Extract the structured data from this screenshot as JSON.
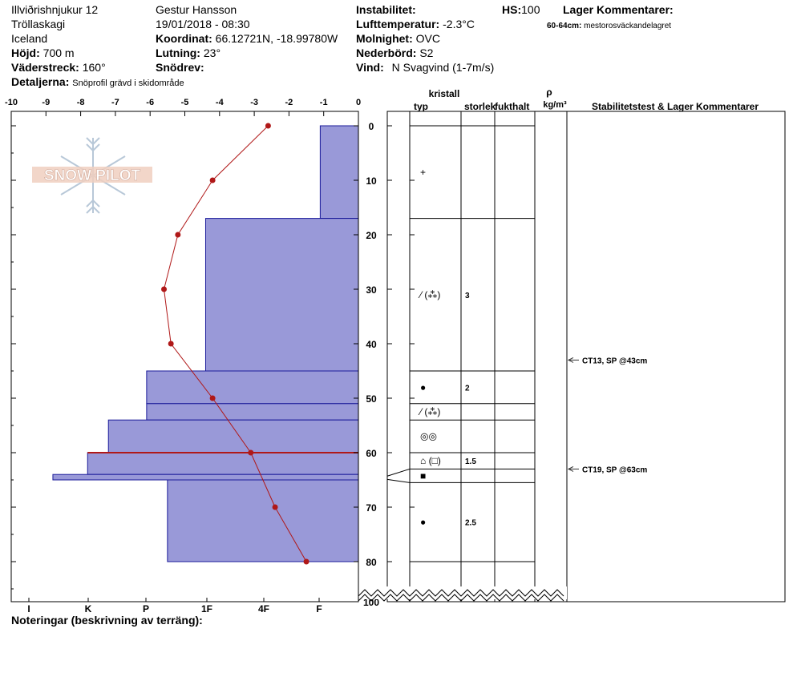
{
  "header": {
    "location_name": "Illviðrishnjukur 12",
    "area": "Tröllaskagi",
    "country": "Iceland",
    "elevation_label": "Höjd:",
    "elevation_value": "700 m",
    "aspect_label": "Väderstreck:",
    "aspect_value": "160°",
    "details_label": "Detaljerna:",
    "details_value": "Snöprofil grävd i skidområde",
    "observer": "Gestur Hansson",
    "datetime": "19/01/2018 - 08:30",
    "coord_label": "Koordinat:",
    "coord_value": "66.12721N, -18.99780W",
    "slope_label": "Lutning:",
    "slope_value": "23°",
    "drift_label": "Snödrev:",
    "drift_value": "",
    "instability_label": "Instabilitet:",
    "instability_value": "",
    "air_temp_label": "Lufttemperatur:",
    "air_temp_value": "-2.3°C",
    "sky_label": "Molnighet:",
    "sky_value": "OVC",
    "precip_label": "Nederbörd:",
    "precip_value": "S2",
    "wind_label": "Vind:",
    "wind_value": "N Svagvind (1-7m/s)",
    "hs_label": "HS:",
    "hs_value": "100",
    "layer_comments_label": "Lager Kommentarer:",
    "layer_comment_range": "60-64cm:",
    "layer_comment_text": "mestorosväckandelagret"
  },
  "logo_text": "SNOW PILOT",
  "footer_note_label": "Noteringar (beskrivning av terräng):",
  "columns": {
    "crystal": "kristall",
    "type": "typ",
    "size": "storlek",
    "moisture": "fukthalt",
    "rho": "ρ",
    "density_unit": "kg/m³",
    "stability": "Stabilitetstest & Lager Kommentarer"
  },
  "colors": {
    "hardness_fill": "#9999d8",
    "hardness_edge": "#1a1a9a",
    "temp_line": "#b01818",
    "grid": "#000000"
  },
  "chart_data": {
    "type": "snow_profile",
    "temperature_axis": {
      "label_ticks": [
        "-10",
        "-9",
        "-8",
        "-7",
        "-6",
        "-5",
        "-4",
        "-3",
        "-2",
        "-1",
        "0"
      ],
      "range": [
        -10,
        0
      ],
      "unit": "°C"
    },
    "depth_axis": {
      "ticks": [
        "0",
        "10",
        "20",
        "30",
        "40",
        "50",
        "60",
        "70",
        "80",
        "100"
      ],
      "range": [
        0,
        100
      ],
      "unit": "cm",
      "break": "80-100"
    },
    "hardness_axis": {
      "ticks": [
        "I",
        "K",
        "P",
        "1F",
        "4F",
        "F"
      ]
    },
    "temperature_profile": [
      {
        "depth": 0,
        "temp": -2.6
      },
      {
        "depth": 10,
        "temp": -4.2
      },
      {
        "depth": 20,
        "temp": -5.2
      },
      {
        "depth": 30,
        "temp": -5.6
      },
      {
        "depth": 40,
        "temp": -5.4
      },
      {
        "depth": 50,
        "temp": -4.2
      },
      {
        "depth": 60,
        "temp": -3.1
      },
      {
        "depth": 70,
        "temp": -2.4
      },
      {
        "depth": 80,
        "temp": -1.5
      }
    ],
    "hardness_layers": [
      {
        "top": 0,
        "bottom": 17,
        "hardness": "F",
        "temp_equiv": -1.1
      },
      {
        "top": 17,
        "bottom": 45,
        "hardness": "1F",
        "temp_equiv": -4.4
      },
      {
        "top": 45,
        "bottom": 51,
        "hardness": "P",
        "temp_equiv": -6.1
      },
      {
        "top": 51,
        "bottom": 54,
        "hardness": "P",
        "temp_equiv": -6.1
      },
      {
        "top": 54,
        "bottom": 60,
        "hardness": "P+",
        "temp_equiv": -7.2
      },
      {
        "top": 60,
        "bottom": 64,
        "hardness": "K",
        "temp_equiv": -7.8
      },
      {
        "top": 64,
        "bottom": 65,
        "hardness": "I",
        "temp_equiv": -8.8
      },
      {
        "top": 65,
        "bottom": 80,
        "hardness": "P-",
        "temp_equiv": -5.5
      }
    ],
    "crystal_layers": [
      {
        "top": 0,
        "bottom": 17,
        "type": "+",
        "size": ""
      },
      {
        "top": 17,
        "bottom": 45,
        "type": "⁄ (⁂)",
        "size": "3"
      },
      {
        "top": 45,
        "bottom": 51,
        "type": "●",
        "size": "2"
      },
      {
        "top": 51,
        "bottom": 54,
        "type": "⁄ (⁂)",
        "size": ""
      },
      {
        "top": 54,
        "bottom": 60,
        "type": "◎◎",
        "size": ""
      },
      {
        "top": 60,
        "bottom": 63,
        "type": "⌂ (□)",
        "size": "1.5"
      },
      {
        "top": 63,
        "bottom": 65.5,
        "type": "■",
        "size": ""
      },
      {
        "top": 65.5,
        "bottom": 80,
        "type": "●",
        "size": "2.5"
      }
    ],
    "stability_tests": [
      {
        "depth": 43,
        "label": "CT13, SP @43cm"
      },
      {
        "depth": 63,
        "label": "CT19, SP @63cm"
      }
    ]
  }
}
